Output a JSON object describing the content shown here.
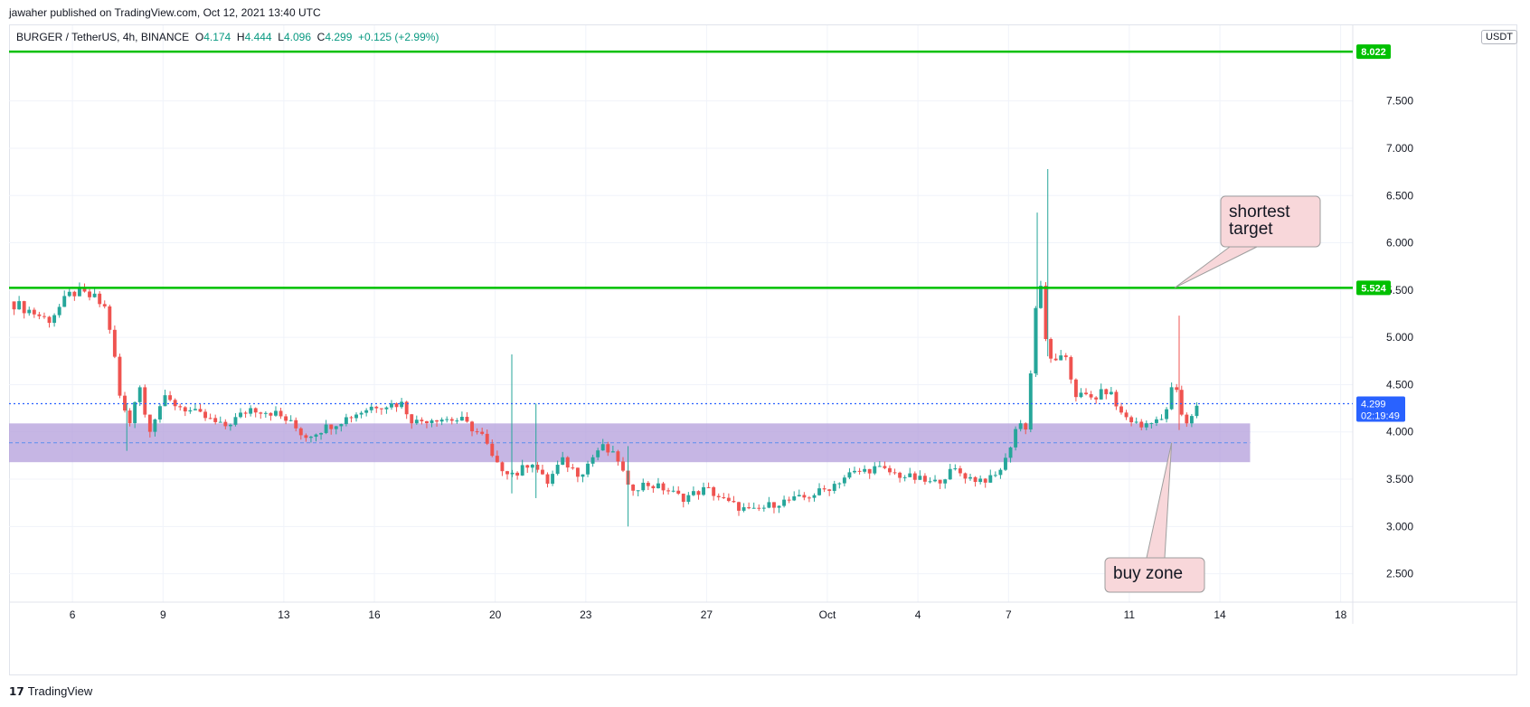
{
  "header": {
    "published": "jawaher published on TradingView.com, Oct 12, 2021 13:40 UTC"
  },
  "legend": {
    "symbol": "BURGER / TetherUS, 4h, BINANCE",
    "open_label": "O",
    "open": "4.174",
    "high_label": "H",
    "high": "4.444",
    "low_label": "L",
    "low": "4.096",
    "close_label": "C",
    "close": "4.299",
    "change": "+0.125 (+2.99%)"
  },
  "currency_button": "USDT",
  "footer": {
    "brand": "TradingView"
  },
  "chart_data": {
    "type": "candlestick",
    "timeframe": "4h",
    "colors": {
      "up": "#26a69a",
      "down": "#ef5350",
      "level_line": "#00c000",
      "zone_fill": "#b39ddb",
      "last_price": "#2962ff",
      "grid": "#f0f3fa",
      "callout_fill": "#f8d7da"
    },
    "y_axis": {
      "range": [
        2.2,
        8.3
      ],
      "ticks": [
        "7.500",
        "7.000",
        "6.500",
        "6.000",
        "5.500",
        "5.000",
        "4.500",
        "4.000",
        "3.500",
        "3.000",
        "2.500"
      ]
    },
    "x_axis": {
      "tick_labels": [
        "6",
        "9",
        "13",
        "16",
        "20",
        "23",
        "27",
        "Oct",
        "4",
        "7",
        "11",
        "14",
        "18"
      ],
      "tick_positions_days": [
        6,
        9,
        13,
        16,
        20,
        23,
        27,
        31,
        34,
        37,
        41,
        44,
        48
      ],
      "range_days": [
        3.9,
        48.4
      ],
      "note_days": "days counted from Sep 0, 2021; Oct 1 = 31"
    },
    "horizontal_levels": [
      {
        "price": 8.022,
        "label": "8.022"
      },
      {
        "price": 5.524,
        "label": "5.524"
      }
    ],
    "last_price": {
      "price": 4.299,
      "label": "4.299",
      "countdown": "02:19:49"
    },
    "buy_zone": {
      "top": 4.09,
      "bottom": 3.68,
      "mid": 3.885,
      "end_day": 45.0
    },
    "annotations": [
      {
        "text_lines": [
          "shortest",
          "target"
        ],
        "anchor_day": 42.5,
        "anchor_price": 5.524
      },
      {
        "text_lines": [
          "buy zone"
        ],
        "anchor_day": 42.4,
        "anchor_price": 3.885
      }
    ],
    "anchor_closes": [
      [
        3.9,
        5.38
      ],
      [
        4.6,
        5.28
      ],
      [
        5.2,
        5.18
      ],
      [
        6.0,
        5.48
      ],
      [
        6.7,
        5.42
      ],
      [
        7.1,
        5.3
      ],
      [
        7.3,
        5.0
      ],
      [
        7.6,
        4.3
      ],
      [
        7.9,
        4.1
      ],
      [
        8.2,
        4.55
      ],
      [
        8.5,
        4.0
      ],
      [
        9.0,
        4.35
      ],
      [
        9.7,
        4.25
      ],
      [
        10.4,
        4.15
      ],
      [
        11.0,
        4.05
      ],
      [
        11.9,
        4.25
      ],
      [
        12.7,
        4.2
      ],
      [
        13.2,
        4.1
      ],
      [
        13.7,
        3.95
      ],
      [
        14.4,
        4.05
      ],
      [
        15.3,
        4.18
      ],
      [
        16.0,
        4.28
      ],
      [
        16.9,
        4.3
      ],
      [
        17.3,
        4.1
      ],
      [
        18.0,
        4.15
      ],
      [
        18.9,
        4.12
      ],
      [
        19.6,
        3.95
      ],
      [
        20.0,
        3.65
      ],
      [
        20.7,
        3.55
      ],
      [
        21.2,
        3.7
      ],
      [
        21.7,
        3.45
      ],
      [
        22.2,
        3.7
      ],
      [
        22.8,
        3.55
      ],
      [
        23.5,
        3.85
      ],
      [
        24.1,
        3.7
      ],
      [
        24.4,
        3.4
      ],
      [
        25.0,
        3.45
      ],
      [
        25.6,
        3.4
      ],
      [
        26.2,
        3.3
      ],
      [
        27.0,
        3.4
      ],
      [
        27.7,
        3.25
      ],
      [
        28.5,
        3.15
      ],
      [
        29.3,
        3.25
      ],
      [
        30.2,
        3.3
      ],
      [
        31.0,
        3.4
      ],
      [
        31.7,
        3.55
      ],
      [
        32.6,
        3.62
      ],
      [
        33.3,
        3.55
      ],
      [
        34.0,
        3.5
      ],
      [
        34.5,
        3.45
      ],
      [
        35.2,
        3.6
      ],
      [
        35.8,
        3.5
      ],
      [
        36.5,
        3.5
      ],
      [
        36.9,
        3.7
      ],
      [
        37.3,
        4.1
      ],
      [
        37.6,
        4.05
      ],
      [
        38.0,
        5.75
      ],
      [
        38.2,
        5.0
      ],
      [
        38.5,
        4.7
      ],
      [
        38.9,
        4.8
      ],
      [
        39.2,
        4.4
      ],
      [
        39.8,
        4.35
      ],
      [
        40.3,
        4.45
      ],
      [
        40.7,
        4.2
      ],
      [
        41.4,
        4.05
      ],
      [
        41.8,
        4.15
      ],
      [
        42.1,
        4.1
      ],
      [
        42.5,
        4.55
      ],
      [
        42.8,
        4.05
      ],
      [
        43.3,
        4.3
      ]
    ],
    "spikes": [
      {
        "day": 20.55,
        "high": 4.82,
        "low": 3.35
      },
      {
        "day": 21.35,
        "high": 4.3,
        "low": 3.3
      },
      {
        "day": 24.4,
        "high": 3.85,
        "low": 3.0
      },
      {
        "day": 7.8,
        "high": 4.3,
        "low": 3.8
      },
      {
        "day": 37.95,
        "high": 6.32,
        "low": 4.6
      },
      {
        "day": 38.3,
        "high": 6.78,
        "low": 4.8
      },
      {
        "day": 42.65,
        "high": 5.23,
        "low": 4.02
      }
    ]
  }
}
